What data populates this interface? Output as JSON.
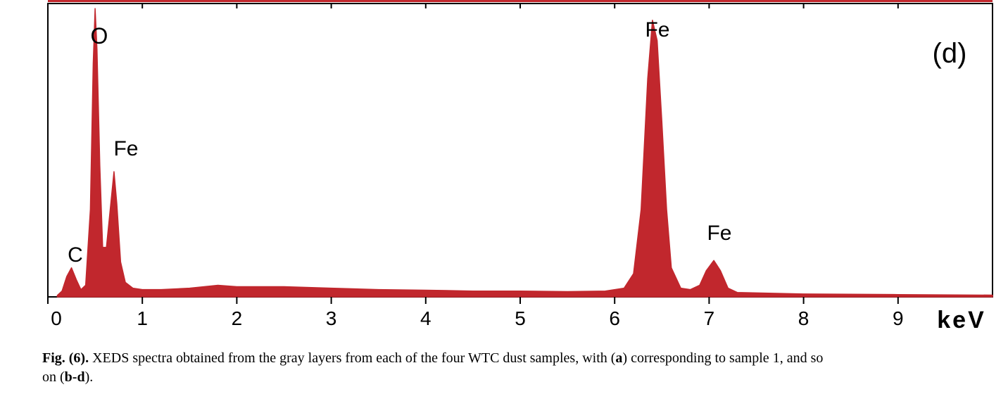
{
  "chart_data": {
    "type": "area",
    "panel_label": "(d)",
    "xlabel": "keV",
    "x": [
      0.1,
      0.15,
      0.2,
      0.25,
      0.3,
      0.35,
      0.4,
      0.45,
      0.48,
      0.5,
      0.52,
      0.55,
      0.58,
      0.62,
      0.66,
      0.7,
      0.73,
      0.77,
      0.82,
      0.9,
      1.0,
      1.2,
      1.5,
      1.8,
      2.0,
      2.5,
      3.0,
      3.5,
      4.0,
      4.5,
      5.0,
      5.5,
      5.9,
      6.1,
      6.2,
      6.28,
      6.35,
      6.4,
      6.45,
      6.5,
      6.55,
      6.6,
      6.7,
      6.8,
      6.9,
      6.97,
      7.05,
      7.12,
      7.2,
      7.3,
      8.0,
      9.0,
      10.0
    ],
    "series": [
      {
        "color": "#c1272d",
        "values": [
          0.5,
          2,
          7,
          10,
          6,
          2.5,
          4,
          30,
          80,
          99,
          85,
          45,
          17,
          17,
          30,
          43,
          32,
          12,
          5,
          3,
          2.5,
          2.5,
          3,
          4,
          3.5,
          3.5,
          3,
          2.5,
          2.3,
          2,
          2,
          1.8,
          2,
          3,
          8,
          30,
          75,
          95,
          88,
          60,
          30,
          10,
          3,
          2.5,
          4,
          9,
          12.5,
          9,
          3,
          1.5,
          1,
          0.8,
          0.6
        ]
      }
    ],
    "xlim": [
      0,
      10
    ],
    "ylim": [
      0,
      100
    ],
    "xticks": [
      0,
      1,
      2,
      3,
      4,
      5,
      6,
      7,
      8,
      9
    ],
    "annotations": [
      "O",
      "Fe",
      "C",
      "Fe",
      "Fe"
    ],
    "caption": [
      [
        {
          "text": "Fig. (6).",
          "bold": true
        },
        {
          "text": " XEDS spectra obtained from the gray layers from each of the four WTC dust samples, with (",
          "bold": false
        },
        {
          "text": "a",
          "bold": true
        },
        {
          "text": ") corresponding to sample 1, and so",
          "bold": false
        }
      ],
      [
        {
          "text": "on (",
          "bold": false
        },
        {
          "text": "b-d",
          "bold": true
        },
        {
          "text": ").",
          "bold": false
        }
      ]
    ]
  }
}
